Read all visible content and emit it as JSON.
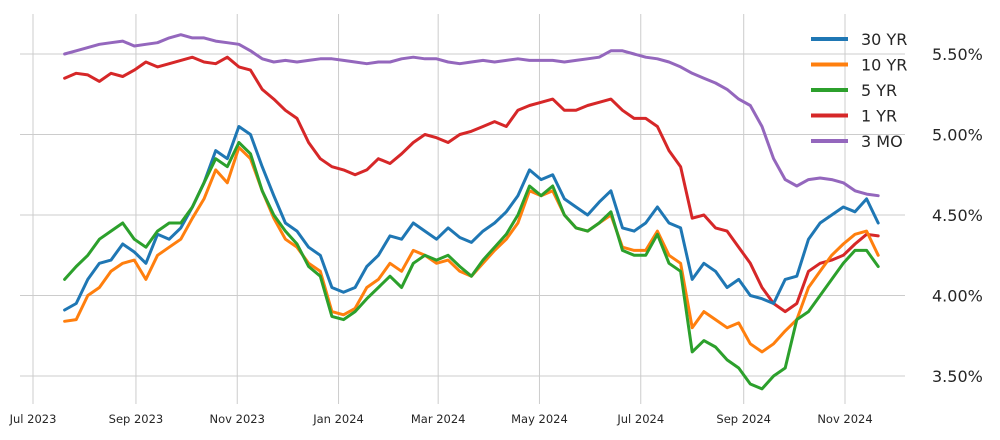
{
  "chart_data": {
    "type": "line",
    "title": "",
    "xlabel": "",
    "ylabel": "",
    "ylim": [
      3.3,
      5.75
    ],
    "grid": true,
    "legend_position": "upper right",
    "y_axis_side": "right",
    "y_ticks": [
      {
        "value": 5.5,
        "label": "5.50%"
      },
      {
        "value": 5.0,
        "label": "5.00%"
      },
      {
        "value": 4.5,
        "label": "4.50%"
      },
      {
        "value": 4.0,
        "label": "4.00%"
      },
      {
        "value": 3.5,
        "label": "3.50%"
      }
    ],
    "x_ticks": [
      {
        "pos": 0,
        "label": "Jul 2023"
      },
      {
        "pos": 62,
        "label": "Sep 2023"
      },
      {
        "pos": 123,
        "label": "Nov 2023"
      },
      {
        "pos": 184,
        "label": "Jan 2024"
      },
      {
        "pos": 244,
        "label": "Mar 2024"
      },
      {
        "pos": 305,
        "label": "May 2024"
      },
      {
        "pos": 366,
        "label": "Jul 2024"
      },
      {
        "pos": 428,
        "label": "Sep 2024"
      },
      {
        "pos": 489,
        "label": "Nov 2024"
      }
    ],
    "x_unit": "days since Jul 1 2023",
    "x": [
      19,
      26,
      33,
      40,
      47,
      54,
      61,
      68,
      75,
      82,
      89,
      96,
      103,
      110,
      117,
      124,
      131,
      138,
      145,
      152,
      159,
      166,
      173,
      180,
      187,
      194,
      201,
      208,
      215,
      222,
      229,
      236,
      243,
      250,
      257,
      264,
      271,
      278,
      285,
      292,
      299,
      306,
      313,
      320,
      327,
      334,
      341,
      348,
      355,
      362,
      369,
      376,
      383,
      390,
      397,
      404,
      411,
      418,
      425,
      432,
      439,
      446,
      453,
      460,
      467,
      474,
      481,
      488,
      495,
      502,
      509
    ],
    "series": [
      {
        "name": "30 YR",
        "color": "#1f77b4",
        "values": [
          3.91,
          3.95,
          4.1,
          4.2,
          4.22,
          4.32,
          4.27,
          4.2,
          4.38,
          4.35,
          4.42,
          4.55,
          4.7,
          4.9,
          4.85,
          5.05,
          5.0,
          4.8,
          4.62,
          4.45,
          4.4,
          4.3,
          4.25,
          4.05,
          4.02,
          4.05,
          4.18,
          4.25,
          4.37,
          4.35,
          4.45,
          4.4,
          4.35,
          4.42,
          4.36,
          4.33,
          4.4,
          4.45,
          4.52,
          4.62,
          4.78,
          4.72,
          4.75,
          4.6,
          4.55,
          4.5,
          4.58,
          4.65,
          4.42,
          4.4,
          4.45,
          4.55,
          4.45,
          4.42,
          4.1,
          4.2,
          4.15,
          4.05,
          4.1,
          4.0,
          3.98,
          3.95,
          4.1,
          4.12,
          4.35,
          4.45,
          4.5,
          4.55,
          4.52,
          4.6,
          4.45
        ]
      },
      {
        "name": "10 YR",
        "color": "#ff7f0e",
        "values": [
          3.84,
          3.85,
          4.0,
          4.05,
          4.15,
          4.2,
          4.22,
          4.1,
          4.25,
          4.3,
          4.35,
          4.48,
          4.6,
          4.78,
          4.7,
          4.92,
          4.85,
          4.65,
          4.48,
          4.35,
          4.3,
          4.2,
          4.15,
          3.9,
          3.88,
          3.92,
          4.05,
          4.1,
          4.2,
          4.15,
          4.28,
          4.25,
          4.2,
          4.22,
          4.15,
          4.12,
          4.2,
          4.28,
          4.35,
          4.45,
          4.65,
          4.62,
          4.65,
          4.5,
          4.42,
          4.4,
          4.45,
          4.5,
          4.3,
          4.28,
          4.28,
          4.4,
          4.25,
          4.2,
          3.8,
          3.9,
          3.85,
          3.8,
          3.83,
          3.7,
          3.65,
          3.7,
          3.78,
          3.85,
          4.05,
          4.15,
          4.25,
          4.32,
          4.38,
          4.4,
          4.25
        ]
      },
      {
        "name": "5 YR",
        "color": "#2ca02c",
        "values": [
          4.1,
          4.18,
          4.25,
          4.35,
          4.4,
          4.45,
          4.35,
          4.3,
          4.4,
          4.45,
          4.45,
          4.55,
          4.7,
          4.85,
          4.8,
          4.95,
          4.88,
          4.65,
          4.5,
          4.4,
          4.32,
          4.18,
          4.12,
          3.87,
          3.85,
          3.9,
          3.98,
          4.05,
          4.12,
          4.05,
          4.2,
          4.25,
          4.22,
          4.25,
          4.18,
          4.12,
          4.22,
          4.3,
          4.38,
          4.5,
          4.68,
          4.62,
          4.68,
          4.5,
          4.42,
          4.4,
          4.45,
          4.52,
          4.28,
          4.25,
          4.25,
          4.38,
          4.2,
          4.15,
          3.65,
          3.72,
          3.68,
          3.6,
          3.55,
          3.45,
          3.42,
          3.5,
          3.55,
          3.85,
          3.9,
          4.0,
          4.1,
          4.2,
          4.28,
          4.28,
          4.18
        ]
      },
      {
        "name": "1 YR",
        "color": "#d62728",
        "values": [
          5.35,
          5.38,
          5.37,
          5.33,
          5.38,
          5.36,
          5.4,
          5.45,
          5.42,
          5.44,
          5.46,
          5.48,
          5.45,
          5.44,
          5.48,
          5.42,
          5.4,
          5.28,
          5.22,
          5.15,
          5.1,
          4.95,
          4.85,
          4.8,
          4.78,
          4.75,
          4.78,
          4.85,
          4.82,
          4.88,
          4.95,
          5.0,
          4.98,
          4.95,
          5.0,
          5.02,
          5.05,
          5.08,
          5.05,
          5.15,
          5.18,
          5.2,
          5.22,
          5.15,
          5.15,
          5.18,
          5.2,
          5.22,
          5.15,
          5.1,
          5.1,
          5.05,
          4.9,
          4.8,
          4.48,
          4.5,
          4.42,
          4.4,
          4.3,
          4.2,
          4.05,
          3.95,
          3.9,
          3.95,
          4.15,
          4.2,
          4.22,
          4.25,
          4.32,
          4.38,
          4.37
        ]
      },
      {
        "name": "3 MO",
        "color": "#9467bd",
        "values": [
          5.5,
          5.52,
          5.54,
          5.56,
          5.57,
          5.58,
          5.55,
          5.56,
          5.57,
          5.6,
          5.62,
          5.6,
          5.6,
          5.58,
          5.57,
          5.56,
          5.52,
          5.47,
          5.45,
          5.46,
          5.45,
          5.46,
          5.47,
          5.47,
          5.46,
          5.45,
          5.44,
          5.45,
          5.45,
          5.47,
          5.48,
          5.47,
          5.47,
          5.45,
          5.44,
          5.45,
          5.46,
          5.45,
          5.46,
          5.47,
          5.46,
          5.46,
          5.46,
          5.45,
          5.46,
          5.47,
          5.48,
          5.52,
          5.52,
          5.5,
          5.48,
          5.47,
          5.45,
          5.42,
          5.38,
          5.35,
          5.32,
          5.28,
          5.22,
          5.18,
          5.05,
          4.85,
          4.72,
          4.68,
          4.72,
          4.73,
          4.72,
          4.7,
          4.65,
          4.63,
          4.62
        ]
      }
    ]
  }
}
